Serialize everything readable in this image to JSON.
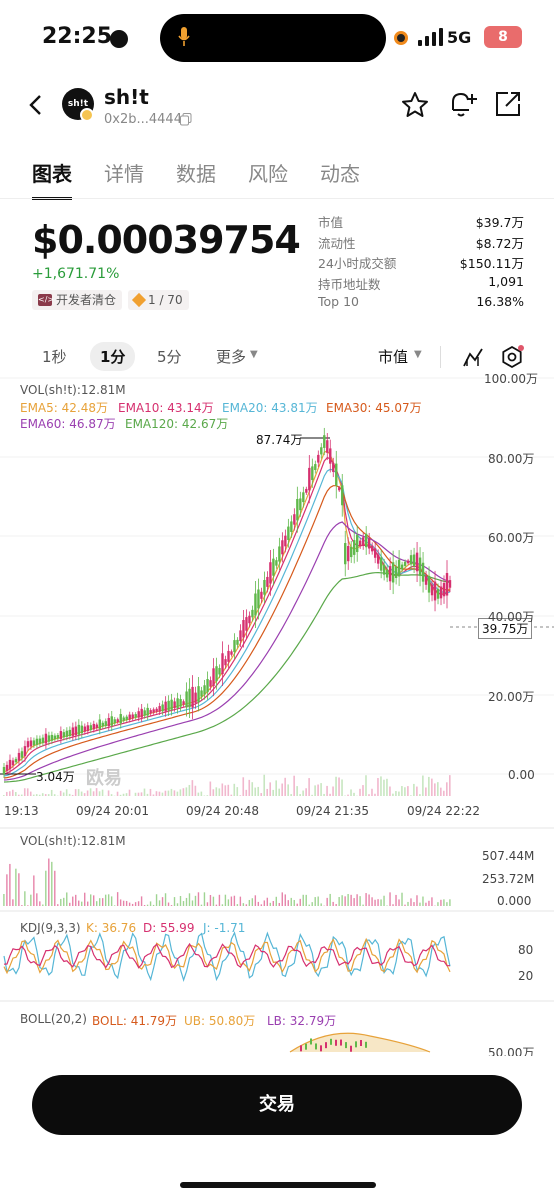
{
  "status": {
    "time": "22:25",
    "network": "5G",
    "battery": "8"
  },
  "token": {
    "logo_text": "sh!t",
    "name": "sh!t",
    "address": "0x2b...4444"
  },
  "tabs": [
    "图表",
    "详情",
    "数据",
    "风险",
    "动态"
  ],
  "price": "$0.00039754",
  "change": "+1,671.71%",
  "dev_tag": "开发者清仓",
  "rank_tag": "1 / 70",
  "stats": [
    {
      "k": "市值",
      "v": "$39.7万"
    },
    {
      "k": "流动性",
      "v": "$8.72万"
    },
    {
      "k": "24小时成交额",
      "v": "$150.11万"
    },
    {
      "k": "持币地址数",
      "v": "1,091"
    },
    {
      "k": "Top 10",
      "v": "16.38%"
    }
  ],
  "intervals": {
    "i1": "1秒",
    "i2": "1分",
    "i3": "5分",
    "more": "更多",
    "mode": "市值"
  },
  "main_legend": {
    "vol": "VOL(sh!t):12.81M",
    "ema5": "EMA5: 42.48万",
    "ema10": "EMA10: 43.14万",
    "ema20": "EMA20: 43.81万",
    "ema30": "EMA30: 45.07万",
    "ema60": "EMA60: 46.87万",
    "ema120": "EMA120: 42.67万"
  },
  "y_axis": [
    "100.00万",
    "80.00万",
    "60.00万",
    "40.00万",
    "20.00万",
    "0.00"
  ],
  "high_label": "87.74万",
  "low_label": "3.04万",
  "current_label": "39.75万",
  "watermark": "欧易",
  "x_axis": [
    "19:13",
    "09/24 20:01",
    "09/24 20:48",
    "09/24 21:35",
    "09/24 22:22"
  ],
  "vol_panel": {
    "label": "VOL(sh!t):12.81M",
    "y": [
      "507.44M",
      "253.72M",
      "0.000"
    ]
  },
  "kdj_panel": {
    "label": "KDJ(9,3,3)",
    "k": "K: 36.76",
    "d": "D: 55.99",
    "j": "J: -1.71",
    "y": [
      "80",
      "20"
    ]
  },
  "boll_panel": {
    "label": "BOLL(20,2)",
    "boll": "BOLL: 41.79万",
    "ub": "UB: 50.80万",
    "lb": "LB: 32.79万",
    "y": [
      "50.00万"
    ]
  },
  "trade_button": "交易",
  "colors": {
    "up": "#5fb84a",
    "down": "#d6306f",
    "ema5": "#e7a23a",
    "ema10": "#d6306f",
    "ema20": "#56b6d6",
    "ema30": "#d65a1c",
    "ema60": "#9a3fb0",
    "ema120": "#5aa84a"
  }
}
